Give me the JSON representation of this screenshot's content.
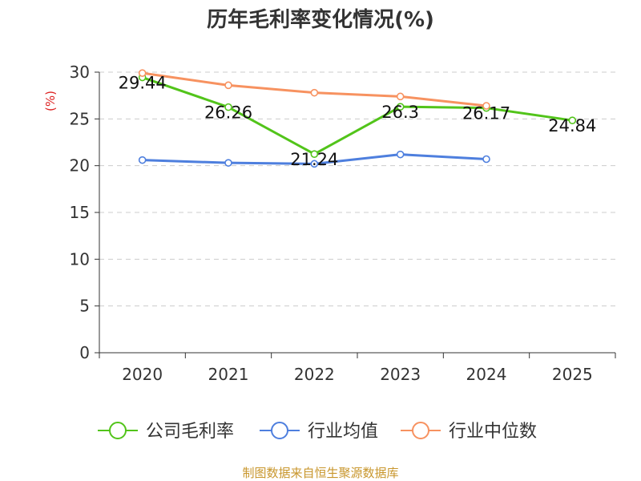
{
  "chart_data": {
    "type": "line",
    "title": "历年毛利率变化情况(%)",
    "ylabel": "(%)",
    "xlabel": "",
    "categories": [
      "2020",
      "2021",
      "2022",
      "2023",
      "2024",
      "2025"
    ],
    "ylim": [
      0,
      30
    ],
    "yticks": [
      0,
      5,
      10,
      15,
      20,
      25,
      30
    ],
    "grid": true,
    "legend_position": "bottom",
    "series": [
      {
        "name": "公司毛利率",
        "color": "#52c41a",
        "values": [
          29.44,
          26.26,
          21.24,
          26.3,
          26.17,
          24.84
        ],
        "show_labels": true
      },
      {
        "name": "行业均值",
        "color": "#4e7fde",
        "values": [
          20.6,
          20.3,
          20.2,
          21.2,
          20.7,
          null
        ],
        "show_labels": false
      },
      {
        "name": "行业中位数",
        "color": "#f79260",
        "values": [
          29.9,
          28.6,
          27.8,
          27.4,
          26.4,
          null
        ],
        "show_labels": false
      }
    ]
  },
  "colors": {
    "axis": "#333333",
    "grid": "#cccccc",
    "ylabel": "#dd2222",
    "source": "#c8962c"
  },
  "source": "制图数据来自恒生聚源数据库"
}
